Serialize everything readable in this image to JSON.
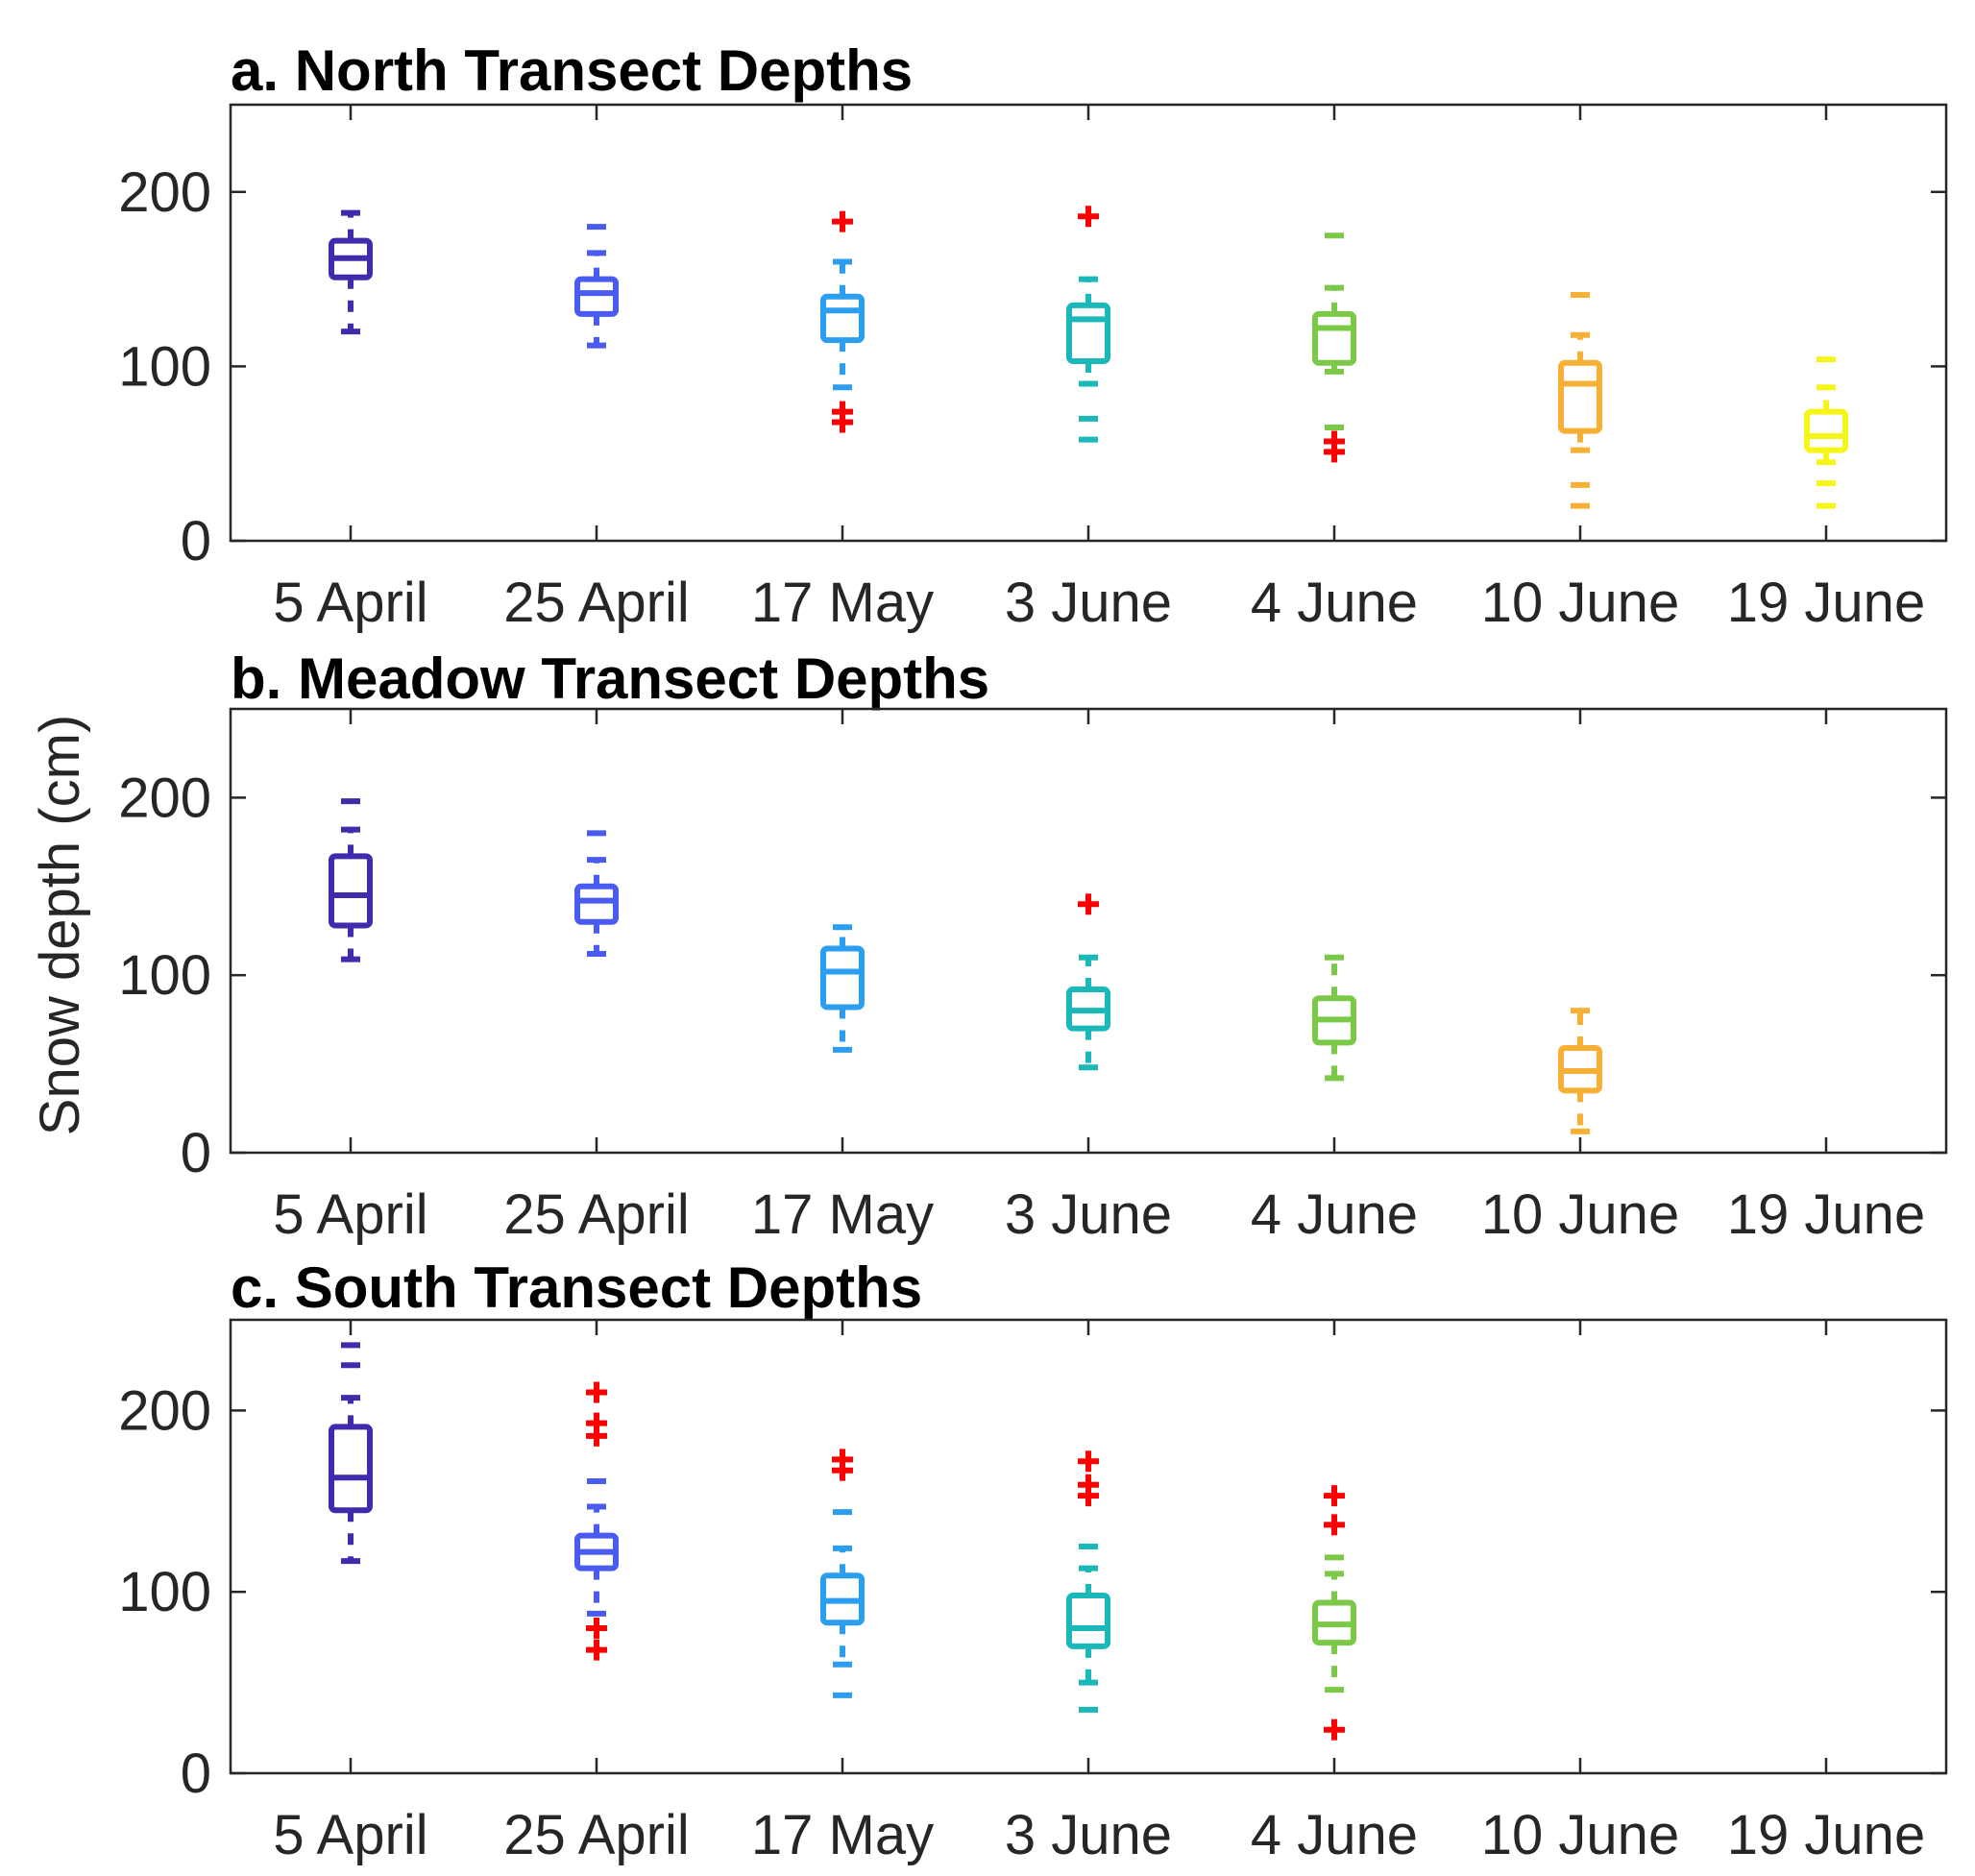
{
  "figure": {
    "ylabel": "Snow depth (cm)"
  },
  "chart_data": [
    {
      "type": "box",
      "title": "a. North Transect Depths",
      "ylabel": "Snow depth (cm)",
      "ylim": [
        0,
        250
      ],
      "yticks": [
        0,
        100,
        200
      ],
      "categories": [
        "5 April",
        "25 April",
        "17 May",
        "3 June",
        "4 June",
        "10 June",
        "19 June"
      ],
      "colors": [
        "#3f2bab",
        "#4a5cf0",
        "#2b9ef0",
        "#1ab8b8",
        "#7cc94a",
        "#f5b035",
        "#f5f518"
      ],
      "outlier_color": "#ff0000",
      "boxes": [
        {
          "category": "5 April",
          "q1": 151,
          "median": 162,
          "q3": 172,
          "whisker_low": 120,
          "whisker_high": 188,
          "outliers": []
        },
        {
          "category": "25 April",
          "q1": 130,
          "median": 142,
          "q3": 150,
          "whisker_low": 112,
          "whisker_high": 165,
          "extremes": [
            180
          ],
          "outliers": []
        },
        {
          "category": "17 May",
          "q1": 115,
          "median": 132,
          "q3": 140,
          "whisker_low": 88,
          "whisker_high": 160,
          "extremes": [],
          "outliers": [
            183,
            74,
            68
          ]
        },
        {
          "category": "3 June",
          "q1": 103,
          "median": 127,
          "q3": 135,
          "whisker_low": 90,
          "whisker_high": 150,
          "extremes": [
            70,
            58
          ],
          "outliers": [
            186
          ]
        },
        {
          "category": "4 June",
          "q1": 102,
          "median": 122,
          "q3": 130,
          "whisker_low": 97,
          "whisker_high": 145,
          "extremes": [
            175,
            65
          ],
          "outliers": [
            57,
            51
          ]
        },
        {
          "category": "10 June",
          "q1": 63,
          "median": 90,
          "q3": 102,
          "whisker_low": 52,
          "whisker_high": 118,
          "extremes": [
            141,
            32,
            20
          ],
          "outliers": []
        },
        {
          "category": "19 June",
          "q1": 52,
          "median": 60,
          "q3": 74,
          "whisker_low": 45,
          "whisker_high": 88,
          "extremes": [
            104,
            33,
            20
          ],
          "outliers": []
        }
      ]
    },
    {
      "type": "box",
      "title": "b. Meadow Transect Depths",
      "ylabel": "Snow depth (cm)",
      "ylim": [
        0,
        250
      ],
      "yticks": [
        0,
        100,
        200
      ],
      "categories": [
        "5 April",
        "25 April",
        "17 May",
        "3 June",
        "4 June",
        "10 June",
        "19 June"
      ],
      "colors": [
        "#3f2bab",
        "#4a5cf0",
        "#2b9ef0",
        "#1ab8b8",
        "#7cc94a",
        "#f5b035",
        "#f5f518"
      ],
      "outlier_color": "#ff0000",
      "boxes": [
        {
          "category": "5 April",
          "q1": 128,
          "median": 145,
          "q3": 167,
          "whisker_low": 109,
          "whisker_high": 182,
          "extremes": [
            198
          ],
          "outliers": []
        },
        {
          "category": "25 April",
          "q1": 130,
          "median": 142,
          "q3": 150,
          "whisker_low": 112,
          "whisker_high": 165,
          "extremes": [
            180
          ],
          "outliers": []
        },
        {
          "category": "17 May",
          "q1": 82,
          "median": 102,
          "q3": 115,
          "whisker_low": 58,
          "whisker_high": 127,
          "extremes": [],
          "outliers": []
        },
        {
          "category": "3 June",
          "q1": 70,
          "median": 80,
          "q3": 92,
          "whisker_low": 48,
          "whisker_high": 110,
          "extremes": [],
          "outliers": [
            140
          ]
        },
        {
          "category": "4 June",
          "q1": 62,
          "median": 75,
          "q3": 87,
          "whisker_low": 42,
          "whisker_high": 110,
          "extremes": [],
          "outliers": []
        },
        {
          "category": "10 June",
          "q1": 35,
          "median": 46,
          "q3": 59,
          "whisker_low": 12,
          "whisker_high": 80,
          "extremes": [],
          "outliers": []
        }
      ]
    },
    {
      "type": "box",
      "title": "c. South Transect Depths",
      "ylabel": "Snow depth (cm)",
      "ylim": [
        0,
        250
      ],
      "yticks": [
        0,
        100,
        200
      ],
      "categories": [
        "5 April",
        "25 April",
        "17 May",
        "3 June",
        "4 June",
        "10 June",
        "19 June"
      ],
      "colors": [
        "#3f2bab",
        "#4a5cf0",
        "#2b9ef0",
        "#1ab8b8",
        "#7cc94a",
        "#f5b035",
        "#f5f518"
      ],
      "outlier_color": "#ff0000",
      "boxes": [
        {
          "category": "5 April",
          "q1": 145,
          "median": 163,
          "q3": 191,
          "whisker_low": 117,
          "whisker_high": 207,
          "extremes": [
            236,
            225
          ],
          "outliers": []
        },
        {
          "category": "25 April",
          "q1": 113,
          "median": 122,
          "q3": 131,
          "whisker_low": 88,
          "whisker_high": 147,
          "extremes": [
            161
          ],
          "outliers": [
            210,
            193,
            186,
            80,
            68
          ]
        },
        {
          "category": "17 May",
          "q1": 83,
          "median": 95,
          "q3": 109,
          "whisker_low": 60,
          "whisker_high": 124,
          "extremes": [
            144,
            43
          ],
          "outliers": [
            173,
            167
          ]
        },
        {
          "category": "3 June",
          "q1": 70,
          "median": 80,
          "q3": 98,
          "whisker_low": 50,
          "whisker_high": 113,
          "extremes": [
            125,
            35
          ],
          "outliers": [
            172,
            159,
            153
          ]
        },
        {
          "category": "4 June",
          "q1": 72,
          "median": 82,
          "q3": 94,
          "whisker_low": 46,
          "whisker_high": 110,
          "extremes": [
            119
          ],
          "outliers": [
            153,
            137,
            24
          ]
        }
      ]
    }
  ]
}
